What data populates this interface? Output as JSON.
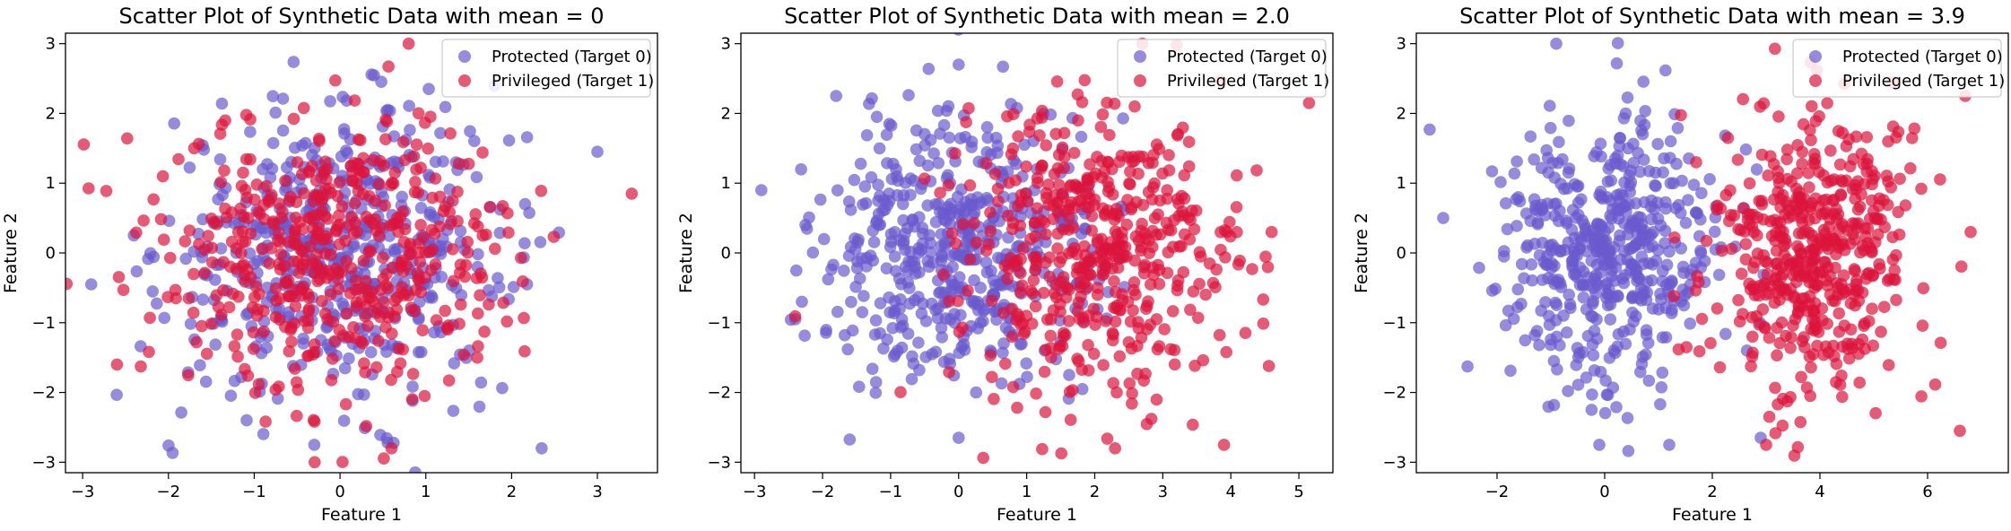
{
  "colors": {
    "protected": "#6a5acd",
    "privileged": "#dc143c",
    "legend_border": "#cccccc",
    "axes": "#000000"
  },
  "chart_data": [
    {
      "type": "scatter",
      "title": "Scatter Plot of Synthetic Data with mean = 0",
      "xlabel": "Feature 1",
      "ylabel": "Feature 2",
      "xlim": [
        -3.2,
        3.7
      ],
      "ylim": [
        -3.15,
        3.15
      ],
      "xticks": [
        -3,
        -2,
        -1,
        0,
        1,
        2,
        3
      ],
      "xtick_labels": [
        "−3",
        "−2",
        "−1",
        "0",
        "1",
        "2",
        "3"
      ],
      "yticks": [
        -3,
        -2,
        -1,
        0,
        1,
        2,
        3
      ],
      "ytick_labels": [
        "−3",
        "−2",
        "−1",
        "0",
        "1",
        "2",
        "3"
      ],
      "grid": false,
      "legend": "top-right",
      "series": [
        {
          "name": "Protected (Target 0)",
          "center": [
            0,
            0
          ],
          "count": 500,
          "sample_points": [
            [
              -0.15,
              0.1
            ],
            [
              0.4,
              -0.5
            ],
            [
              -0.9,
              1.2
            ],
            [
              1.8,
              2.4
            ],
            [
              3.0,
              1.45
            ],
            [
              -2.9,
              -0.45
            ],
            [
              2.35,
              -2.8
            ],
            [
              -0.3,
              -2.75
            ]
          ]
        },
        {
          "name": "Privileged (Target 1)",
          "center": [
            0,
            0
          ],
          "count": 500,
          "sample_points": [
            [
              0.2,
              0.3
            ],
            [
              -0.6,
              -0.4
            ],
            [
              0.8,
              3.0
            ],
            [
              3.4,
              0.85
            ],
            [
              -2.6,
              -1.6
            ],
            [
              0.6,
              -2.8
            ],
            [
              -1.7,
              1.5
            ],
            [
              1.6,
              -1.5
            ]
          ]
        }
      ]
    },
    {
      "type": "scatter",
      "title": "Scatter Plot of Synthetic Data with mean = 2.0",
      "xlabel": "Feature 1",
      "ylabel": "Feature 2",
      "xlim": [
        -3.2,
        5.5
      ],
      "ylim": [
        -3.15,
        3.15
      ],
      "xticks": [
        -3,
        -2,
        -1,
        0,
        1,
        2,
        3,
        4,
        5
      ],
      "xtick_labels": [
        "−3",
        "−2",
        "−1",
        "0",
        "1",
        "2",
        "3",
        "4",
        "5"
      ],
      "yticks": [
        -3,
        -2,
        -1,
        0,
        1,
        2,
        3
      ],
      "ytick_labels": [
        "−3",
        "−2",
        "−1",
        "0",
        "1",
        "2",
        "3"
      ],
      "grid": false,
      "legend": "top-right",
      "series": [
        {
          "name": "Protected (Target 0)",
          "center": [
            0,
            0
          ],
          "count": 500,
          "sample_points": [
            [
              -0.2,
              0.1
            ],
            [
              0.5,
              -0.6
            ],
            [
              -2.9,
              0.9
            ],
            [
              0.0,
              2.7
            ],
            [
              -1.8,
              2.25
            ],
            [
              0.0,
              -2.65
            ],
            [
              -2.4,
              -0.95
            ]
          ]
        },
        {
          "name": "Privileged (Target 1)",
          "center": [
            2.0,
            0
          ],
          "count": 500,
          "sample_points": [
            [
              2.1,
              0.2
            ],
            [
              1.6,
              -0.5
            ],
            [
              5.15,
              2.15
            ],
            [
              2.7,
              3.0
            ],
            [
              2.3,
              -2.8
            ],
            [
              3.9,
              -2.75
            ],
            [
              4.6,
              0.3
            ]
          ]
        }
      ]
    },
    {
      "type": "scatter",
      "title": "Scatter Plot of Synthetic Data with mean = 3.9",
      "xlabel": "Feature 1",
      "ylabel": "Feature 2",
      "xlim": [
        -3.5,
        7.5
      ],
      "ylim": [
        -3.15,
        3.15
      ],
      "xticks": [
        -2,
        0,
        2,
        4,
        6
      ],
      "xtick_labels": [
        "−2",
        "0",
        "2",
        "4",
        "6"
      ],
      "yticks": [
        -3,
        -2,
        -1,
        0,
        1,
        2,
        3
      ],
      "ytick_labels": [
        "−3",
        "−2",
        "−1",
        "0",
        "1",
        "2",
        "3"
      ],
      "grid": false,
      "legend": "top-right",
      "series": [
        {
          "name": "Protected (Target 0)",
          "center": [
            0,
            0
          ],
          "count": 500,
          "sample_points": [
            [
              -0.1,
              0.1
            ],
            [
              0.6,
              -0.4
            ],
            [
              -0.9,
              3.0
            ],
            [
              -3.0,
              0.5
            ],
            [
              -0.1,
              -2.75
            ],
            [
              1.2,
              -2.75
            ],
            [
              2.9,
              -2.65
            ]
          ]
        },
        {
          "name": "Privileged (Target 1)",
          "center": [
            3.9,
            0
          ],
          "count": 500,
          "sample_points": [
            [
              4.0,
              0.2
            ],
            [
              3.4,
              -0.6
            ],
            [
              6.7,
              2.25
            ],
            [
              6.6,
              -2.55
            ],
            [
              3.0,
              -2.75
            ],
            [
              1.7,
              1.3
            ],
            [
              6.8,
              0.3
            ]
          ]
        }
      ]
    }
  ]
}
